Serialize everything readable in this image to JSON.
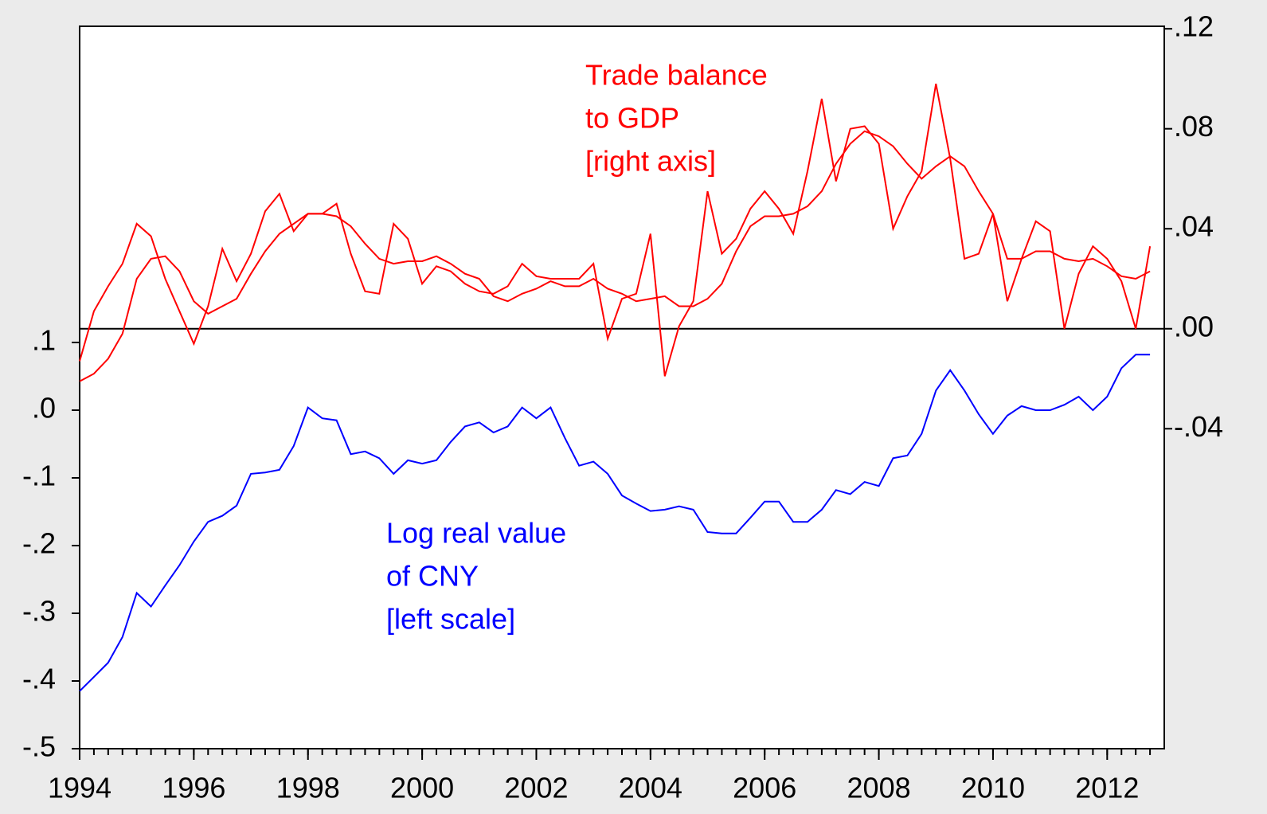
{
  "chart_data": {
    "type": "line",
    "x": [
      1994,
      1994.25,
      1994.5,
      1994.75,
      1995,
      1995.25,
      1995.5,
      1995.75,
      1996,
      1996.25,
      1996.5,
      1996.75,
      1997,
      1997.25,
      1997.5,
      1997.75,
      1998,
      1998.25,
      1998.5,
      1998.75,
      1999,
      1999.25,
      1999.5,
      1999.75,
      2000,
      2000.25,
      2000.5,
      2000.75,
      2001,
      2001.25,
      2001.5,
      2001.75,
      2002,
      2002.25,
      2002.5,
      2002.75,
      2003,
      2003.25,
      2003.5,
      2003.75,
      2004,
      2004.25,
      2004.5,
      2004.75,
      2005,
      2005.25,
      2005.5,
      2005.75,
      2006,
      2006.25,
      2006.5,
      2006.75,
      2007,
      2007.25,
      2007.5,
      2007.75,
      2008,
      2008.25,
      2008.5,
      2008.75,
      2009,
      2009.25,
      2009.5,
      2009.75,
      2010,
      2010.25,
      2010.5,
      2010.75,
      2011,
      2011.25,
      2011.5,
      2011.75,
      2012,
      2012.25,
      2012.5,
      2012.75
    ],
    "series": [
      {
        "color": "#0000ff",
        "axis": "y",
        "values": [
          -0.415,
          -0.394,
          -0.373,
          -0.335,
          -0.27,
          -0.29,
          -0.259,
          -0.229,
          -0.194,
          -0.165,
          -0.156,
          -0.141,
          -0.094,
          -0.092,
          -0.088,
          -0.053,
          0.004,
          -0.012,
          -0.015,
          -0.065,
          -0.061,
          -0.071,
          -0.094,
          -0.074,
          -0.079,
          -0.074,
          -0.047,
          -0.024,
          -0.018,
          -0.033,
          -0.024,
          0.004,
          -0.012,
          0.004,
          -0.041,
          -0.082,
          -0.076,
          -0.094,
          -0.126,
          -0.138,
          -0.149,
          -0.147,
          -0.142,
          -0.147,
          -0.18,
          -0.182,
          -0.182,
          -0.159,
          -0.135,
          -0.135,
          -0.165,
          -0.165,
          -0.147,
          -0.118,
          -0.124,
          -0.106,
          -0.112,
          -0.071,
          -0.067,
          -0.035,
          0.029,
          0.059,
          0.029,
          -0.006,
          -0.035,
          -0.008,
          0.006,
          0,
          0,
          0.008,
          0.02,
          0,
          0.02,
          0.062,
          0.082,
          0.082
        ]
      },
      {
        "color": "#ff0000",
        "axis": "y2",
        "values": [
          -0.013,
          0.007,
          0.017,
          0.026,
          0.042,
          0.037,
          0.02,
          0.007,
          -0.006,
          0.009,
          0.032,
          0.019,
          0.03,
          0.047,
          0.054,
          0.039,
          0.046,
          0.046,
          0.05,
          0.03,
          0.015,
          0.014,
          0.042,
          0.036,
          0.018,
          0.025,
          0.023,
          0.018,
          0.015,
          0.014,
          0.017,
          0.026,
          0.021,
          0.02,
          0.02,
          0.02,
          0.026,
          -0.004,
          0.012,
          0.014,
          0.038,
          -0.019,
          0.001,
          0.011,
          0.055,
          0.03,
          0.036,
          0.048,
          0.055,
          0.048,
          0.038,
          0.063,
          0.092,
          0.059,
          0.08,
          0.081,
          0.074,
          0.04,
          0.053,
          0.063,
          0.098,
          0.068,
          0.028,
          0.03,
          0.046,
          0.011,
          0.028,
          0.043,
          0.039,
          0,
          0.022,
          0.033,
          0.028,
          0.019,
          0,
          0.033
        ]
      },
      {
        "color": "#ff0000",
        "axis": "y2",
        "values": [
          -0.021,
          -0.018,
          -0.012,
          -0.002,
          0.02,
          0.028,
          0.029,
          0.023,
          0.011,
          0.006,
          0.009,
          0.012,
          0.022,
          0.031,
          0.038,
          0.042,
          0.046,
          0.046,
          0.045,
          0.041,
          0.034,
          0.028,
          0.026,
          0.027,
          0.027,
          0.029,
          0.026,
          0.022,
          0.02,
          0.013,
          0.011,
          0.014,
          0.016,
          0.019,
          0.017,
          0.017,
          0.02,
          0.016,
          0.014,
          0.011,
          0.012,
          0.013,
          0.009,
          0.009,
          0.012,
          0.018,
          0.031,
          0.041,
          0.045,
          0.045,
          0.046,
          0.049,
          0.055,
          0.066,
          0.074,
          0.079,
          0.077,
          0.073,
          0.066,
          0.06,
          0.065,
          0.069,
          0.065,
          0.055,
          0.046,
          0.028,
          0.028,
          0.031,
          0.031,
          0.028,
          0.027,
          0.028,
          0.025,
          0.021,
          0.02,
          0.023
        ]
      }
    ],
    "xlim": [
      1994,
      2013
    ],
    "xticks": [
      1994,
      1996,
      1998,
      2000,
      2002,
      2004,
      2006,
      2008,
      2010,
      2012
    ],
    "ylim": [
      -0.5,
      0.567
    ],
    "yticks": [
      {
        "value": 0.1,
        "label": ".1"
      },
      {
        "value": 0,
        "label": ".0"
      },
      {
        "value": -0.1,
        "label": "-.1"
      },
      {
        "value": -0.2,
        "label": "-.2"
      },
      {
        "value": -0.3,
        "label": "-.3"
      },
      {
        "value": -0.4,
        "label": "-.4"
      },
      {
        "value": -0.5,
        "label": "-.5"
      }
    ],
    "y2lim": [
      -0.168,
      0.121
    ],
    "y2ticks": [
      {
        "value": 0.12,
        "label": ".12"
      },
      {
        "value": 0.08,
        "label": ".08"
      },
      {
        "value": 0.04,
        "label": ".04"
      },
      {
        "value": 0,
        "label": ".00"
      },
      {
        "value": -0.04,
        "label": "-.04"
      }
    ],
    "zeroline": "y2",
    "annotations": [
      {
        "lines": [
          "Trade balance",
          "to GDP",
          "[right axis]"
        ],
        "color": "#ff0000"
      },
      {
        "lines": [
          "Log real value",
          "of CNY",
          "[left scale]"
        ],
        "color": "#0000ff"
      }
    ]
  }
}
